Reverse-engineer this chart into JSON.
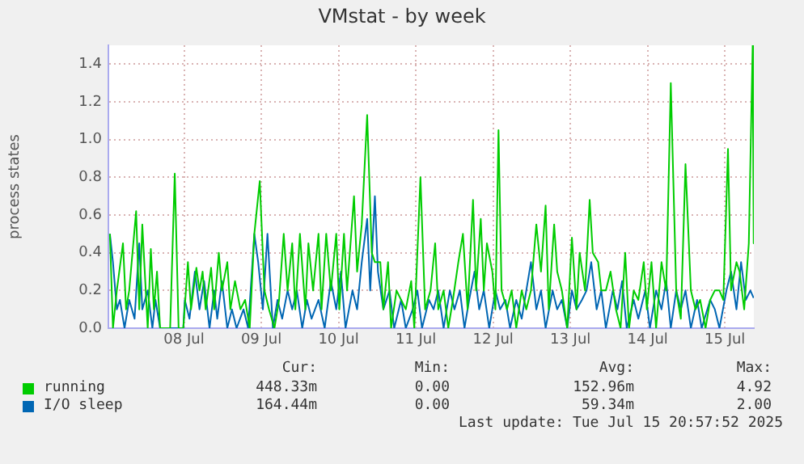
{
  "chart_data": {
    "type": "line",
    "title": "VMstat - by week",
    "ylabel": "process states",
    "xlim": [
      "2025-07-07T12:30",
      "2025-07-15T21:00"
    ],
    "xticks": [
      {
        "value": "2025-07-08T12:00",
        "label": "08 Jul"
      },
      {
        "value": "2025-07-09T12:00",
        "label": "09 Jul"
      },
      {
        "value": "2025-07-10T12:00",
        "label": "10 Jul"
      },
      {
        "value": "2025-07-11T12:00",
        "label": "11 Jul"
      },
      {
        "value": "2025-07-12T12:00",
        "label": "12 Jul"
      },
      {
        "value": "2025-07-13T12:00",
        "label": "13 Jul"
      },
      {
        "value": "2025-07-14T12:00",
        "label": "14 Jul"
      },
      {
        "value": "2025-07-15T12:00",
        "label": "15 Jul"
      }
    ],
    "ylim": [
      0,
      1.5
    ],
    "yticks": [
      {
        "value": 0,
        "label": "0.0"
      },
      {
        "value": 0.2,
        "label": "0.2"
      },
      {
        "value": 0.4,
        "label": "0.4"
      },
      {
        "value": 0.6,
        "label": "0.6"
      },
      {
        "value": 0.8,
        "label": "0.8"
      },
      {
        "value": 1,
        "label": "1.0"
      },
      {
        "value": 1.2,
        "label": "1.2"
      },
      {
        "value": 1.4,
        "label": "1.4"
      }
    ],
    "grid": true,
    "legend": "bottom",
    "marker": "none",
    "series": [
      {
        "name": "running",
        "color": "#00cc00",
        "x": [
          "2025-07-07T12:58",
          "2025-07-07T13:55",
          "2025-07-07T15:07",
          "2025-07-07T17:02",
          "2025-07-07T18:00",
          "2025-07-07T18:58",
          "2025-07-07T21:07",
          "2025-07-07T22:05",
          "2025-07-07T23:02",
          "2025-07-08T00:43",
          "2025-07-08T01:41",
          "2025-07-08T02:38",
          "2025-07-08T03:36",
          "2025-07-08T04:34",
          "2025-07-08T06:43",
          "2025-07-08T07:41",
          "2025-07-08T09:07",
          "2025-07-08T10:19",
          "2025-07-08T11:46",
          "2025-07-08T13:12",
          "2025-07-08T14:10",
          "2025-07-08T15:50",
          "2025-07-08T16:48",
          "2025-07-08T17:46",
          "2025-07-08T18:43",
          "2025-07-08T20:24",
          "2025-07-08T21:22",
          "2025-07-08T22:48",
          "2025-07-08T23:46",
          "2025-07-09T01:26",
          "2025-07-09T02:24",
          "2025-07-09T03:50",
          "2025-07-09T05:31",
          "2025-07-09T06:58",
          "2025-07-09T08:24",
          "2025-07-09T09:50",
          "2025-07-09T11:31",
          "2025-07-09T12:58",
          "2025-07-09T14:24",
          "2025-07-09T16:05",
          "2025-07-09T17:31",
          "2025-07-09T18:58",
          "2025-07-09T20:10",
          "2025-07-09T21:36",
          "2025-07-09T22:34",
          "2025-07-10T00:00",
          "2025-07-10T01:41",
          "2025-07-10T02:38",
          "2025-07-10T04:05",
          "2025-07-10T05:46",
          "2025-07-10T06:43",
          "2025-07-10T08:10",
          "2025-07-10T09:36",
          "2025-07-10T11:17",
          "2025-07-10T12:14",
          "2025-07-10T13:41",
          "2025-07-10T14:38",
          "2025-07-10T16:48",
          "2025-07-10T17:46",
          "2025-07-10T19:12",
          "2025-07-10T20:53",
          "2025-07-10T22:19",
          "2025-07-10T23:17",
          "2025-07-11T00:58",
          "2025-07-11T01:55",
          "2025-07-11T03:22",
          "2025-07-11T04:19",
          "2025-07-11T06:00",
          "2025-07-11T07:26",
          "2025-07-11T08:53",
          "2025-07-11T10:34",
          "2025-07-11T11:31",
          "2025-07-11T13:26",
          "2025-07-11T14:53",
          "2025-07-11T16:34",
          "2025-07-11T18:00",
          "2025-07-11T18:58",
          "2025-07-11T20:38",
          "2025-07-11T22:05",
          "2025-07-11T23:31",
          "2025-07-12T01:12",
          "2025-07-12T02:38",
          "2025-07-12T04:05",
          "2025-07-12T05:46",
          "2025-07-12T06:43",
          "2025-07-12T08:10",
          "2025-07-12T09:07",
          "2025-07-12T10:05",
          "2025-07-12T11:46",
          "2025-07-12T12:43",
          "2025-07-12T13:41",
          "2025-07-12T14:38",
          "2025-07-12T16:19",
          "2025-07-12T17:46",
          "2025-07-12T19:12",
          "2025-07-12T20:53",
          "2025-07-12T22:19",
          "2025-07-12T23:46",
          "2025-07-13T01:26",
          "2025-07-13T02:53",
          "2025-07-13T04:19",
          "2025-07-13T05:17",
          "2025-07-13T06:58",
          "2025-07-13T07:55",
          "2025-07-13T09:22",
          "2025-07-13T11:02",
          "2025-07-13T12:29",
          "2025-07-13T13:55",
          "2025-07-13T14:53",
          "2025-07-13T16:34",
          "2025-07-13T18:00",
          "2025-07-13T18:58",
          "2025-07-13T20:38",
          "2025-07-13T21:36",
          "2025-07-13T23:02",
          "2025-07-14T00:29",
          "2025-07-14T02:10",
          "2025-07-14T03:36",
          "2025-07-14T05:02",
          "2025-07-14T06:14",
          "2025-07-14T07:41",
          "2025-07-14T09:07",
          "2025-07-14T10:48",
          "2025-07-14T11:46",
          "2025-07-14T13:12",
          "2025-07-14T14:38",
          "2025-07-14T16:19",
          "2025-07-14T17:46",
          "2025-07-14T19:12",
          "2025-07-14T20:53",
          "2025-07-14T22:19",
          "2025-07-14T23:46",
          "2025-07-15T01:26",
          "2025-07-15T02:53",
          "2025-07-15T04:19",
          "2025-07-15T06:00",
          "2025-07-15T07:26",
          "2025-07-15T08:53",
          "2025-07-15T10:19",
          "2025-07-15T11:31",
          "2025-07-15T12:58",
          "2025-07-15T13:55",
          "2025-07-15T15:36",
          "2025-07-15T16:34",
          "2025-07-15T18:00",
          "2025-07-15T19:26",
          "2025-07-15T20:38",
          "2025-07-15T20:57"
        ],
        "values": [
          0.5,
          0.0,
          0.2,
          0.45,
          0.1,
          0.2,
          0.62,
          0.1,
          0.55,
          0.0,
          0.42,
          0.1,
          0.3,
          0.0,
          0.0,
          0.0,
          0.82,
          0.0,
          0.0,
          0.35,
          0.1,
          0.32,
          0.2,
          0.3,
          0.1,
          0.32,
          0.1,
          0.4,
          0.2,
          0.35,
          0.1,
          0.25,
          0.1,
          0.15,
          0.0,
          0.5,
          0.78,
          0.2,
          0.1,
          0.0,
          0.15,
          0.5,
          0.2,
          0.45,
          0.1,
          0.5,
          0.1,
          0.45,
          0.2,
          0.5,
          0.1,
          0.5,
          0.2,
          0.5,
          0.1,
          0.5,
          0.2,
          0.7,
          0.3,
          0.55,
          1.13,
          0.4,
          0.35,
          0.35,
          0.1,
          0.35,
          0.0,
          0.2,
          0.15,
          0.1,
          0.25,
          0.0,
          0.8,
          0.1,
          0.2,
          0.45,
          0.1,
          0.2,
          0.0,
          0.15,
          0.35,
          0.5,
          0.1,
          0.68,
          0.2,
          0.58,
          0.2,
          0.45,
          0.3,
          0.1,
          1.05,
          0.2,
          0.1,
          0.2,
          0.0,
          0.2,
          0.1,
          0.2,
          0.55,
          0.3,
          0.65,
          0.1,
          0.55,
          0.3,
          0.2,
          0.0,
          0.48,
          0.1,
          0.4,
          0.2,
          0.68,
          0.4,
          0.35,
          0.2,
          0.2,
          0.3,
          0.1,
          0.0,
          0.4,
          0.0,
          0.2,
          0.15,
          0.35,
          0.1,
          0.35,
          0.0,
          0.35,
          0.2,
          1.3,
          0.2,
          0.05,
          0.87,
          0.2,
          0.1,
          0.15,
          0.0,
          0.15,
          0.2,
          0.2,
          0.15,
          0.95,
          0.2,
          0.35,
          0.3,
          0.1,
          0.45,
          1.5,
          0.45
        ]
      },
      {
        "name": "I/O sleep",
        "color": "#0066b3",
        "x": [
          "2025-07-07T12:58",
          "2025-07-07T13:55",
          "2025-07-07T15:07",
          "2025-07-07T16:05",
          "2025-07-07T17:31",
          "2025-07-07T18:58",
          "2025-07-07T20:38",
          "2025-07-07T22:05",
          "2025-07-07T23:02",
          "2025-07-08T00:43",
          "2025-07-08T02:10",
          "2025-07-08T03:07",
          "2025-07-08T04:34",
          "2025-07-08T11:46",
          "2025-07-08T12:14",
          "2025-07-08T13:41",
          "2025-07-08T15:22",
          "2025-07-08T16:48",
          "2025-07-08T18:14",
          "2025-07-08T19:55",
          "2025-07-08T21:22",
          "2025-07-08T22:19",
          "2025-07-08T23:46",
          "2025-07-09T01:26",
          "2025-07-09T02:53",
          "2025-07-09T04:19",
          "2025-07-09T06:29",
          "2025-07-09T07:55",
          "2025-07-09T09:50",
          "2025-07-09T11:02",
          "2025-07-09T12:29",
          "2025-07-09T13:55",
          "2025-07-09T15:36",
          "2025-07-09T17:02",
          "2025-07-09T18:29",
          "2025-07-09T20:10",
          "2025-07-09T21:36",
          "2025-07-09T23:02",
          "2025-07-10T00:43",
          "2025-07-10T02:10",
          "2025-07-10T03:36",
          "2025-07-10T05:46",
          "2025-07-10T07:41",
          "2025-07-10T09:36",
          "2025-07-10T11:17",
          "2025-07-10T12:43",
          "2025-07-10T14:10",
          "2025-07-10T16:19",
          "2025-07-10T17:46",
          "2025-07-10T19:12",
          "2025-07-10T20:53",
          "2025-07-10T21:50",
          "2025-07-10T23:17",
          "2025-07-11T00:14",
          "2025-07-11T01:55",
          "2025-07-11T03:50",
          "2025-07-11T05:17",
          "2025-07-11T07:26",
          "2025-07-11T08:53",
          "2025-07-11T11:02",
          "2025-07-11T12:29",
          "2025-07-11T13:55",
          "2025-07-11T16:05",
          "2025-07-11T17:31",
          "2025-07-11T18:58",
          "2025-07-11T20:38",
          "2025-07-11T22:34",
          "2025-07-12T00:00",
          "2025-07-12T01:41",
          "2025-07-12T03:07",
          "2025-07-12T04:34",
          "2025-07-12T06:14",
          "2025-07-12T07:41",
          "2025-07-12T09:07",
          "2025-07-12T10:48",
          "2025-07-12T12:43",
          "2025-07-12T14:10",
          "2025-07-12T15:50",
          "2025-07-12T17:17",
          "2025-07-12T19:12",
          "2025-07-12T20:53",
          "2025-07-12T22:19",
          "2025-07-12T23:46",
          "2025-07-13T01:26",
          "2025-07-13T02:53",
          "2025-07-13T04:19",
          "2025-07-13T06:29",
          "2025-07-13T07:55",
          "2025-07-13T09:22",
          "2025-07-13T11:02",
          "2025-07-13T12:29",
          "2025-07-13T13:55",
          "2025-07-13T15:36",
          "2025-07-13T17:02",
          "2025-07-13T18:29",
          "2025-07-13T20:10",
          "2025-07-13T21:36",
          "2025-07-13T23:02",
          "2025-07-14T01:12",
          "2025-07-14T02:38",
          "2025-07-14T04:05",
          "2025-07-14T05:31",
          "2025-07-14T07:41",
          "2025-07-14T09:07",
          "2025-07-14T11:17",
          "2025-07-14T12:43",
          "2025-07-14T14:38",
          "2025-07-14T16:19",
          "2025-07-14T17:46",
          "2025-07-14T19:12",
          "2025-07-14T20:53",
          "2025-07-14T22:19",
          "2025-07-14T23:46",
          "2025-07-15T01:26",
          "2025-07-15T03:22",
          "2025-07-15T04:48",
          "2025-07-15T07:26",
          "2025-07-15T08:53",
          "2025-07-15T10:19",
          "2025-07-15T12:29",
          "2025-07-15T13:55",
          "2025-07-15T15:36",
          "2025-07-15T17:02",
          "2025-07-15T18:29",
          "2025-07-15T19:55",
          "2025-07-15T20:57"
        ],
        "values": [
          0.5,
          0.35,
          0.1,
          0.15,
          0.0,
          0.15,
          0.05,
          0.45,
          0.1,
          0.2,
          0.0,
          0.15,
          0.0,
          0.0,
          0.15,
          0.05,
          0.3,
          0.1,
          0.25,
          0.0,
          0.2,
          0.05,
          0.25,
          0.0,
          0.1,
          0.0,
          0.1,
          0.0,
          0.5,
          0.35,
          0.1,
          0.5,
          0.0,
          0.15,
          0.05,
          0.2,
          0.1,
          0.2,
          0.0,
          0.15,
          0.05,
          0.15,
          0.0,
          0.25,
          0.1,
          0.3,
          0.0,
          0.2,
          0.1,
          0.35,
          0.58,
          0.2,
          0.7,
          0.3,
          0.1,
          0.2,
          0.0,
          0.15,
          0.0,
          0.1,
          0.2,
          0.0,
          0.15,
          0.1,
          0.2,
          0.0,
          0.2,
          0.1,
          0.2,
          0.0,
          0.15,
          0.3,
          0.1,
          0.2,
          0.0,
          0.2,
          0.1,
          0.15,
          0.0,
          0.15,
          0.05,
          0.2,
          0.35,
          0.1,
          0.2,
          0.0,
          0.2,
          0.1,
          0.15,
          0.0,
          0.2,
          0.1,
          0.15,
          0.2,
          0.35,
          0.1,
          0.2,
          0.0,
          0.2,
          0.1,
          0.25,
          0.0,
          0.15,
          0.05,
          0.2,
          0.0,
          0.2,
          0.1,
          0.25,
          0.0,
          0.2,
          0.1,
          0.2,
          0.0,
          0.15,
          0.0,
          0.15,
          0.1,
          0.0,
          0.2,
          0.3,
          0.1,
          0.35,
          0.15,
          0.2,
          0.16
        ]
      }
    ],
    "annotations": [
      "Cur:",
      "Min:",
      "Avg:",
      "Max:",
      "448.33m",
      "0.00",
      "152.96m",
      "4.92",
      "164.44m",
      "0.00",
      "59.34m",
      "2.00",
      "Last update: Tue Jul 15 20:57:52 2025"
    ]
  }
}
